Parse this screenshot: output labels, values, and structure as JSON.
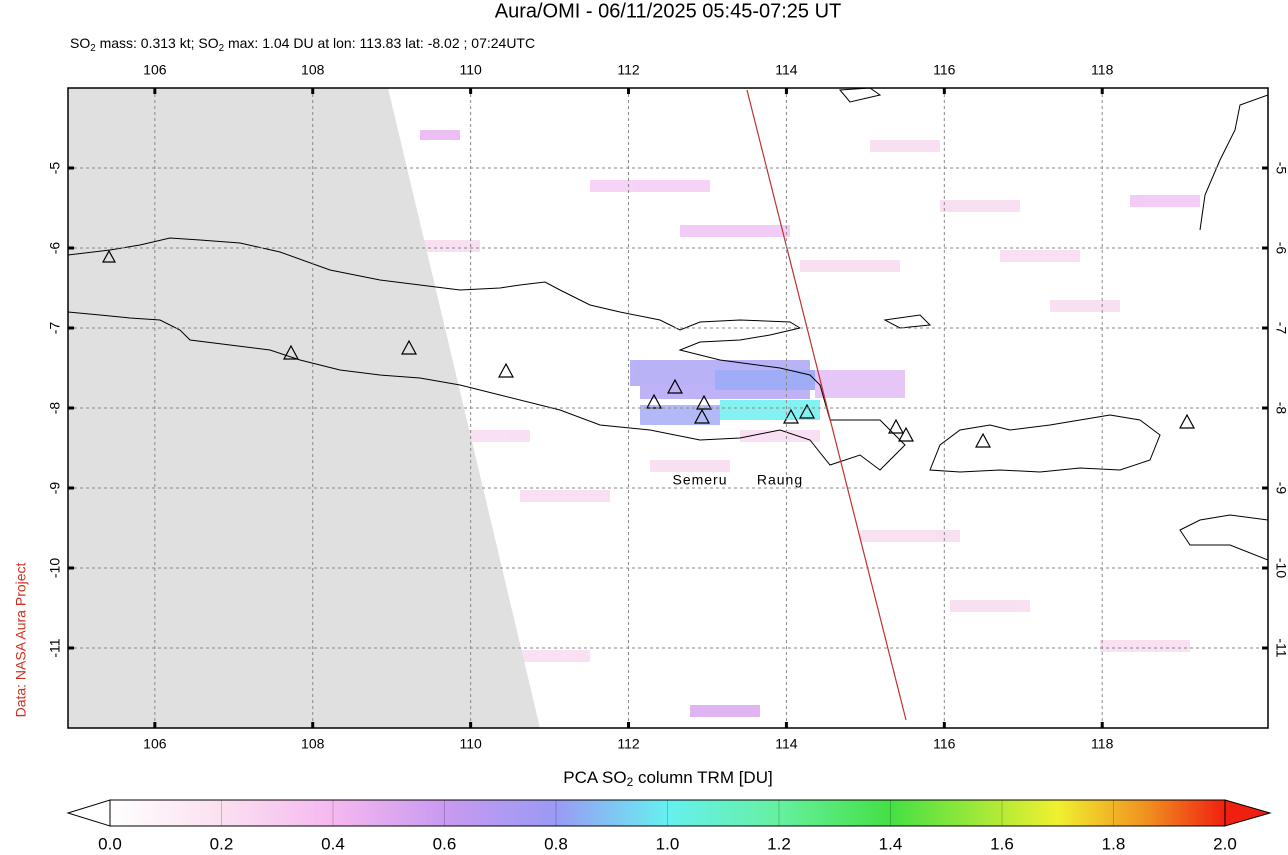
{
  "title": "Aura/OMI - 06/11/2025 05:45-07:25 UT",
  "subtitle": [
    "SO",
    "2",
    " mass: 0.313 kt; SO",
    "2",
    " max: 1.04 DU at lon: 113.83 lat: -8.02 ; 07:24UTC"
  ],
  "credit": "Data: NASA Aura Project",
  "map": {
    "lon_range": [
      104.9,
      120.1
    ],
    "lat_range": [
      -4,
      -12
    ],
    "lon_ticks": [
      106,
      108,
      110,
      112,
      114,
      116,
      118
    ],
    "lat_ticks": [
      -5,
      -6,
      -7,
      -8,
      -9,
      -10,
      -11
    ],
    "labels": [
      "Semeru",
      "Raung"
    ]
  },
  "colorbar": {
    "title": [
      "PCA SO",
      "2",
      " column TRM [DU]"
    ],
    "range": [
      0,
      2
    ],
    "ticks": [
      {
        "value": 0,
        "label": "0.0"
      },
      {
        "value": 0.2,
        "label": "0.2"
      },
      {
        "value": 0.4,
        "label": "0.4"
      },
      {
        "value": 0.6,
        "label": "0.6"
      },
      {
        "value": 0.8,
        "label": "0.8"
      },
      {
        "value": 1.0,
        "label": "1.0"
      },
      {
        "value": 1.2,
        "label": "1.2"
      },
      {
        "value": 1.4,
        "label": "1.4"
      },
      {
        "value": 1.6,
        "label": "1.6"
      },
      {
        "value": 1.8,
        "label": "1.8"
      },
      {
        "value": 2.0,
        "label": "2.0"
      }
    ]
  }
}
